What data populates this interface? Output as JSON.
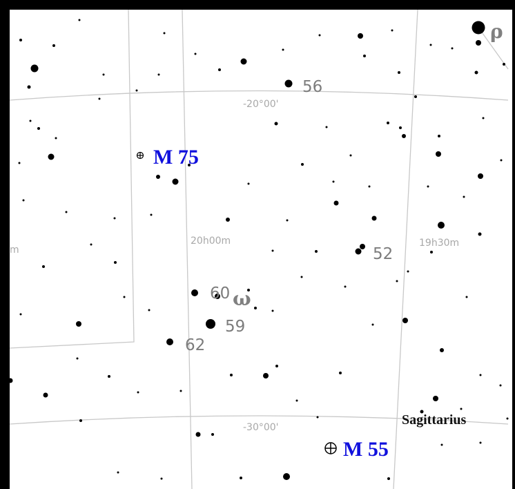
{
  "map": {
    "ra_labels": [
      "m",
      "20h00m",
      "19h30m"
    ],
    "dec_labels": [
      "-20°00'",
      "-30°00'"
    ],
    "star_labels": [
      "56",
      "52",
      "60",
      "59",
      "62"
    ],
    "greek_labels": [
      "ρ",
      "ω"
    ],
    "deep_sky_objects": [
      "M 75",
      "M 55"
    ],
    "constellation": "Sagittarius"
  },
  "colors": {
    "grid": "#c8c8c8",
    "coord_text": "#a8a8a8",
    "star_label": "#7c7c7c",
    "deep_sky_label": "#1010dd",
    "star": "#000000"
  }
}
